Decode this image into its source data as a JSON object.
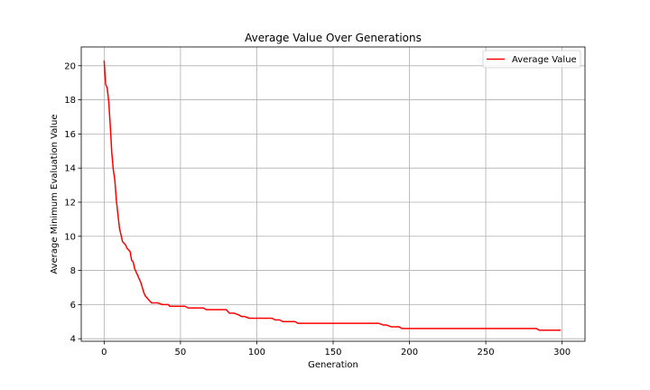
{
  "chart_data": {
    "type": "line",
    "title": "Average Value Over Generations",
    "xlabel": "Generation",
    "ylabel": "Average Minimum Evaluation Value",
    "xlim": [
      -15,
      315
    ],
    "ylim": [
      3.85,
      21.1
    ],
    "xticks": [
      0,
      50,
      100,
      150,
      200,
      250,
      300
    ],
    "yticks": [
      4,
      6,
      8,
      10,
      12,
      14,
      16,
      18,
      20
    ],
    "grid": true,
    "legend_position": "upper right",
    "series": [
      {
        "name": "Average Value",
        "color": "#ff0000",
        "x": [
          0,
          1,
          2,
          3,
          4,
          5,
          6,
          7,
          8,
          9,
          10,
          11,
          12,
          13,
          14,
          15,
          16,
          17,
          18,
          19,
          20,
          21,
          22,
          23,
          24,
          25,
          26,
          27,
          28,
          29,
          30,
          31,
          32,
          33,
          35,
          38,
          40,
          42,
          43,
          45,
          50,
          53,
          55,
          60,
          65,
          67,
          70,
          75,
          80,
          82,
          85,
          88,
          90,
          92,
          95,
          100,
          105,
          110,
          112,
          115,
          117,
          120,
          125,
          127,
          130,
          140,
          150,
          160,
          170,
          180,
          183,
          185,
          188,
          190,
          193,
          195,
          200,
          210,
          220,
          230,
          240,
          250,
          260,
          270,
          280,
          283,
          285,
          290,
          295,
          299
        ],
        "y": [
          20.3,
          18.9,
          18.7,
          17.9,
          16.5,
          14.9,
          13.9,
          13.3,
          12.1,
          11.3,
          10.5,
          10.1,
          9.7,
          9.6,
          9.5,
          9.3,
          9.2,
          9.1,
          8.6,
          8.5,
          8.1,
          7.9,
          7.7,
          7.5,
          7.3,
          7.0,
          6.7,
          6.5,
          6.4,
          6.3,
          6.2,
          6.1,
          6.1,
          6.1,
          6.1,
          6.0,
          6.0,
          6.0,
          5.9,
          5.9,
          5.9,
          5.9,
          5.8,
          5.8,
          5.8,
          5.7,
          5.7,
          5.7,
          5.7,
          5.5,
          5.5,
          5.4,
          5.3,
          5.3,
          5.2,
          5.2,
          5.2,
          5.2,
          5.1,
          5.1,
          5.0,
          5.0,
          5.0,
          4.9,
          4.9,
          4.9,
          4.9,
          4.9,
          4.9,
          4.9,
          4.8,
          4.8,
          4.7,
          4.7,
          4.7,
          4.6,
          4.6,
          4.6,
          4.6,
          4.6,
          4.6,
          4.6,
          4.6,
          4.6,
          4.6,
          4.6,
          4.5,
          4.5,
          4.5,
          4.5
        ]
      }
    ]
  }
}
